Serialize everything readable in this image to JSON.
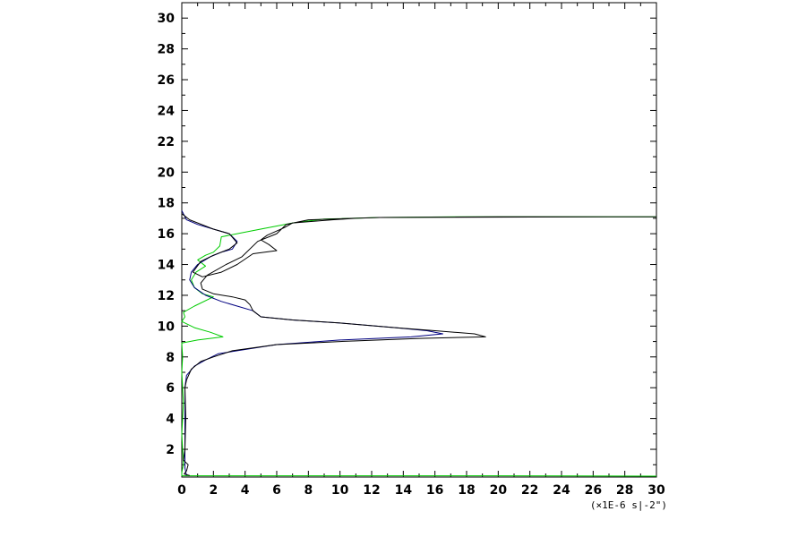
{
  "chart_data": {
    "type": "line",
    "title": "",
    "xlabel": "(×1E-6 s|-2\")",
    "ylabel": "",
    "xlim": [
      0,
      30
    ],
    "ylim": [
      0.2,
      31
    ],
    "grid": false,
    "legend": "none",
    "x_ticks": [
      0,
      2,
      4,
      6,
      8,
      10,
      12,
      14,
      16,
      18,
      20,
      22,
      24,
      26,
      28,
      30
    ],
    "y_ticks": [
      2,
      4,
      6,
      8,
      10,
      12,
      14,
      16,
      18,
      20,
      22,
      24,
      26,
      28,
      30
    ],
    "series": [
      {
        "color": "#00cc00",
        "points": [
          [
            30,
            17.1
          ],
          [
            18,
            17.1
          ],
          [
            12.5,
            17.05
          ],
          [
            9,
            16.95
          ],
          [
            7,
            16.7
          ],
          [
            5.5,
            16.4
          ],
          [
            4,
            16.1
          ],
          [
            2.5,
            15.8
          ],
          [
            2.4,
            15.2
          ],
          [
            2.0,
            14.8
          ],
          [
            1.5,
            14.6
          ],
          [
            1.0,
            14.3
          ],
          [
            1.5,
            13.9
          ],
          [
            0.9,
            13.5
          ],
          [
            0.6,
            13.0
          ],
          [
            0.8,
            12.5
          ],
          [
            1.3,
            12.1
          ],
          [
            2.0,
            11.9
          ],
          [
            0.8,
            11.3
          ],
          [
            0.1,
            10.9
          ],
          [
            0.2,
            10.6
          ],
          [
            0.0,
            10.3
          ],
          [
            0.8,
            9.9
          ],
          [
            1.8,
            9.6
          ],
          [
            2.6,
            9.3
          ],
          [
            1.0,
            9.1
          ],
          [
            0.0,
            8.9
          ],
          [
            0.05,
            8.0
          ],
          [
            0.0,
            7.0
          ],
          [
            0.1,
            5.0
          ],
          [
            0.0,
            3.0
          ],
          [
            0.1,
            1.0
          ],
          [
            0.0,
            0.5
          ],
          [
            0.0,
            0.28
          ],
          [
            20,
            0.28
          ],
          [
            30,
            0.26
          ]
        ]
      },
      {
        "color": "#000080",
        "points": [
          [
            0.0,
            17.5
          ],
          [
            0.3,
            16.9
          ],
          [
            1.0,
            16.6
          ],
          [
            2.0,
            16.3
          ],
          [
            3.0,
            16.0
          ],
          [
            3.5,
            15.5
          ],
          [
            3.2,
            15.0
          ],
          [
            2.5,
            14.8
          ],
          [
            1.8,
            14.5
          ],
          [
            1.0,
            14.0
          ],
          [
            0.6,
            13.5
          ],
          [
            0.5,
            13.0
          ],
          [
            0.8,
            12.5
          ],
          [
            1.5,
            12.0
          ],
          [
            2.5,
            11.6
          ],
          [
            3.5,
            11.3
          ],
          [
            4.5,
            11.0
          ],
          [
            5.0,
            10.6
          ],
          [
            7.0,
            10.4
          ],
          [
            10.0,
            10.2
          ],
          [
            13.5,
            9.9
          ],
          [
            15.5,
            9.7
          ],
          [
            16.5,
            9.5
          ],
          [
            14.5,
            9.3
          ],
          [
            10.0,
            9.1
          ],
          [
            6.0,
            8.8
          ],
          [
            3.5,
            8.4
          ],
          [
            2.3,
            8.2
          ],
          [
            1.5,
            7.8
          ],
          [
            0.8,
            7.4
          ],
          [
            0.3,
            6.8
          ],
          [
            0.2,
            6.0
          ],
          [
            0.2,
            4.0
          ],
          [
            0.2,
            2.0
          ],
          [
            0.2,
            0.8
          ],
          [
            0.3,
            0.3
          ]
        ]
      },
      {
        "color": "#000000",
        "points": [
          [
            0.0,
            17.3
          ],
          [
            0.5,
            16.9
          ],
          [
            2.0,
            16.3
          ],
          [
            3.0,
            16.0
          ],
          [
            3.5,
            15.4
          ],
          [
            3.0,
            15.0
          ],
          [
            2.0,
            14.6
          ],
          [
            1.2,
            14.2
          ],
          [
            0.7,
            13.5
          ],
          [
            1.3,
            13.2
          ],
          [
            2.5,
            13.5
          ],
          [
            3.5,
            14.0
          ],
          [
            4.5,
            14.7
          ],
          [
            6.0,
            14.9
          ],
          [
            5.5,
            15.3
          ],
          [
            5.0,
            15.6
          ],
          [
            5.4,
            15.9
          ],
          [
            6.5,
            16.4
          ],
          [
            7.0,
            16.7
          ],
          [
            9.5,
            16.9
          ],
          [
            11.0,
            17.0
          ],
          [
            12.5,
            17.05
          ],
          [
            20,
            17.1
          ],
          [
            30,
            17.1
          ],
          [
            27,
            17.1
          ],
          [
            12.5,
            17.05
          ],
          [
            8.0,
            16.9
          ],
          [
            6.6,
            16.6
          ],
          [
            6.0,
            16.0
          ],
          [
            4.8,
            15.5
          ],
          [
            3.8,
            14.5
          ],
          [
            2.8,
            14.0
          ],
          [
            1.6,
            13.3
          ],
          [
            1.2,
            12.8
          ],
          [
            1.3,
            12.4
          ],
          [
            2.0,
            12.1
          ],
          [
            3.2,
            11.9
          ],
          [
            4.0,
            11.7
          ],
          [
            4.3,
            11.4
          ],
          [
            4.5,
            11.0
          ],
          [
            5.0,
            10.6
          ],
          [
            7.0,
            10.4
          ],
          [
            10.0,
            10.2
          ],
          [
            13.5,
            9.9
          ],
          [
            16.0,
            9.7
          ],
          [
            18.5,
            9.5
          ],
          [
            19.2,
            9.3
          ],
          [
            15.0,
            9.2
          ],
          [
            10.0,
            9.0
          ],
          [
            6.0,
            8.8
          ],
          [
            3.2,
            8.4
          ],
          [
            2.0,
            8.0
          ],
          [
            1.2,
            7.7
          ],
          [
            0.6,
            7.2
          ],
          [
            0.3,
            6.5
          ],
          [
            0.2,
            6.0
          ],
          [
            0.25,
            4.0
          ],
          [
            0.2,
            2.0
          ],
          [
            0.1,
            1.3
          ],
          [
            0.4,
            1.0
          ],
          [
            0.3,
            0.6
          ],
          [
            0.15,
            0.4
          ],
          [
            0.5,
            0.3
          ]
        ]
      }
    ]
  }
}
